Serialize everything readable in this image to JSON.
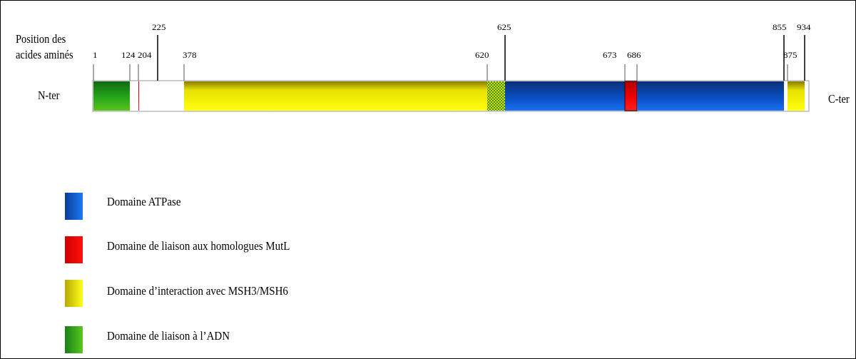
{
  "axis_title_line1": "Position des",
  "axis_title_line2": "acides aminés",
  "n_terminus": "N-ter",
  "c_terminus": "C-ter",
  "protein_length": 934,
  "positions": [
    "1",
    "124",
    "204",
    "225",
    "378",
    "620",
    "625",
    "673",
    "686",
    "855",
    "875",
    "934"
  ],
  "segments": [
    {
      "start": 1,
      "end": 124,
      "type": "dna"
    },
    {
      "start": 124,
      "end": 146,
      "type": "blank"
    },
    {
      "start": 146,
      "end": 204,
      "type": "mutl"
    },
    {
      "start": 204,
      "end": 225,
      "type": "blank"
    },
    {
      "start": 225,
      "end": 378,
      "type": "blank"
    },
    {
      "start": 378,
      "end": 620,
      "type": "interaction"
    },
    {
      "start": 620,
      "end": 625,
      "type": "overlap"
    },
    {
      "start": 625,
      "end": 673,
      "type": "atpase"
    },
    {
      "start": 673,
      "end": 686,
      "type": "mutl"
    },
    {
      "start": 686,
      "end": 855,
      "type": "atpase"
    },
    {
      "start": 855,
      "end": 875,
      "type": "blank"
    },
    {
      "start": 875,
      "end": 934,
      "type": "interaction"
    }
  ],
  "colors": {
    "atpase": "#0a52c8",
    "mutl": "#ee0000",
    "interaction": "#f2f000",
    "dna": "#21a21b",
    "blank": "#ffffff"
  },
  "legend": [
    {
      "type": "atpase",
      "label": "Domaine ATPase"
    },
    {
      "type": "mutl",
      "label": "Domaine de liaison aux homologues MutL"
    },
    {
      "type": "interaction",
      "label": "Domaine d’interaction avec MSH3/MSH6"
    },
    {
      "type": "dna",
      "label": "Domaine de liaison à l’ADN"
    }
  ]
}
